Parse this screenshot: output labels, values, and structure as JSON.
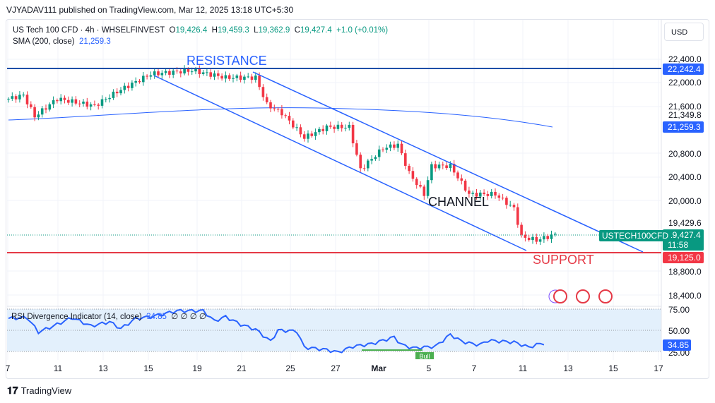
{
  "published": "VJYADAV111 published on TradingView.com, Mar 12, 2025 13:18 UTC+5:30",
  "legend": {
    "symbol": "US Tech 100 CFD · 4h · WHSELFINVEST",
    "o_label": "O",
    "o": "19,426.4",
    "h_label": "H",
    "h": "19,459.3",
    "l_label": "L",
    "l": "19,362.9",
    "c_label": "C",
    "c": "19,427.4",
    "change": "+1.0 (+0.01%)",
    "sma_label": "SMA (200, close)",
    "sma": "21,259.3"
  },
  "currency": "USD",
  "annotations": {
    "resistance": "RESISTANCE",
    "channel": "CHANNEL",
    "support": "SUPPORT",
    "symbol_tag": "USTECH100CFD",
    "bull": "Bull"
  },
  "price_axis": {
    "ticks": [
      "22,400.0",
      "22,000.0",
      "21,600.0",
      "20,800.0",
      "20,400.0",
      "20,000.0",
      "18,800.0",
      "18,400.0"
    ],
    "extra": [
      "21,349.8",
      "19,429.6"
    ],
    "resistance_tag": "22,242.4",
    "sma_tag": "21,259.3",
    "last_price": "19,427.4",
    "countdown": "11:58",
    "support_tag": "19,125.0"
  },
  "rsi": {
    "label": "RSI Divergence Indicator (14, close)",
    "value": "34.85",
    "flags": "∅ ∅ ∅ ∅",
    "ticks": [
      "75.00",
      "50.00",
      "25.00"
    ],
    "tag": "34.85"
  },
  "x_axis": [
    "7",
    "11",
    "13",
    "15",
    "19",
    "21",
    "25",
    "27",
    "Mar",
    "5",
    "7",
    "11",
    "13",
    "15",
    "17"
  ],
  "brand": "TradingView",
  "colors": {
    "up": "#089981",
    "down": "#f23645",
    "line": "#2962ff",
    "support": "#e53946",
    "resistance": "#1e4fa8"
  },
  "chart_data": {
    "type": "candlestick",
    "title": "US Tech 100 CFD 4h",
    "ylim": [
      18300,
      22500
    ],
    "price_path": [
      [
        0,
        21730
      ],
      [
        4,
        21790
      ],
      [
        7,
        21430
      ],
      [
        13,
        21730
      ],
      [
        23,
        21610
      ],
      [
        29,
        21850
      ],
      [
        38,
        22150
      ],
      [
        49,
        22210
      ],
      [
        58,
        22090
      ],
      [
        66,
        22090
      ],
      [
        69,
        21630
      ],
      [
        73,
        21490
      ],
      [
        79,
        21070
      ],
      [
        85,
        21250
      ],
      [
        91,
        21250
      ],
      [
        94,
        20530
      ],
      [
        100,
        20890
      ],
      [
        104,
        20950
      ],
      [
        107,
        20470
      ],
      [
        111,
        20110
      ],
      [
        113,
        20590
      ],
      [
        118,
        20590
      ],
      [
        123,
        20110
      ],
      [
        130,
        20110
      ],
      [
        135,
        19870
      ],
      [
        137,
        19390
      ],
      [
        141,
        19330
      ],
      [
        146,
        19427
      ]
    ],
    "rsi_path": [
      [
        0,
        64
      ],
      [
        5,
        65
      ],
      [
        8,
        48
      ],
      [
        12,
        55
      ],
      [
        17,
        65
      ],
      [
        22,
        55
      ],
      [
        27,
        60
      ],
      [
        30,
        52
      ],
      [
        34,
        64
      ],
      [
        38,
        66
      ],
      [
        45,
        73
      ],
      [
        52,
        73
      ],
      [
        55,
        61
      ],
      [
        58,
        66
      ],
      [
        62,
        57
      ],
      [
        66,
        51
      ],
      [
        70,
        37
      ],
      [
        72,
        50
      ],
      [
        77,
        49
      ],
      [
        79,
        30
      ],
      [
        85,
        27
      ],
      [
        88,
        24
      ],
      [
        92,
        31
      ],
      [
        97,
        34
      ],
      [
        103,
        42
      ],
      [
        105,
        33
      ],
      [
        108,
        29
      ],
      [
        114,
        31
      ],
      [
        118,
        45
      ],
      [
        121,
        37
      ],
      [
        124,
        34
      ],
      [
        126,
        33
      ],
      [
        128,
        38
      ],
      [
        135,
        36
      ],
      [
        139,
        30
      ],
      [
        141,
        33
      ],
      [
        143,
        34.85
      ]
    ],
    "sma": 21259.3,
    "resistance": 22242.4,
    "support": 19125.0,
    "last": 19427.4
  }
}
